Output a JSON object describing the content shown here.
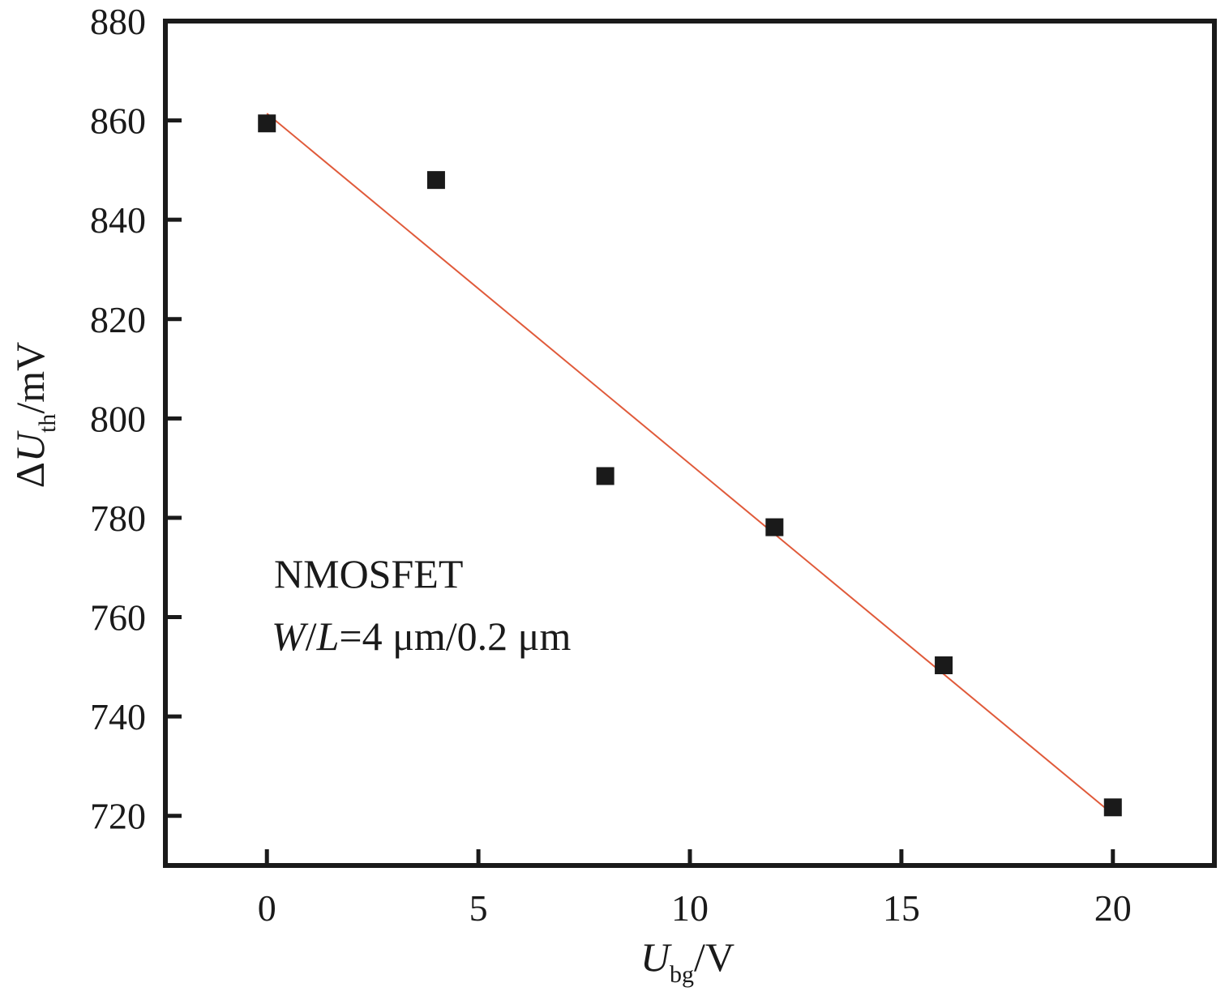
{
  "chart_data": {
    "type": "scatter",
    "title": "",
    "xlabel": {
      "symbol": "U",
      "subscript": "bg",
      "unit": "/V"
    },
    "ylabel": {
      "prefix": "Δ",
      "symbol": "U",
      "subscript": "th",
      "unit": "/mV"
    },
    "xlim": [
      -2.4,
      22.4
    ],
    "ylim": [
      710,
      880
    ],
    "xticks": [
      0,
      5,
      10,
      15,
      20
    ],
    "yticks": [
      720,
      740,
      760,
      780,
      800,
      820,
      840,
      860,
      880
    ],
    "grid": false,
    "legend": "none",
    "series": [
      {
        "marker": "square",
        "color": "#1a1a1a",
        "x": [
          0,
          4,
          8,
          12,
          16,
          20
        ],
        "y": [
          859.4,
          848,
          788.4,
          778.1,
          750.3,
          721.7
        ]
      }
    ],
    "fit_line": {
      "color": "#e05a3a",
      "x": [
        0,
        20
      ],
      "y": [
        861.4,
        720.3
      ]
    },
    "annotations": {
      "line1": "NMOSFET",
      "line2_italic_w": "W",
      "line2_slash": "/",
      "line2_italic_l": "L",
      "line2_rest": "=4 μm/0.2 μm"
    }
  }
}
